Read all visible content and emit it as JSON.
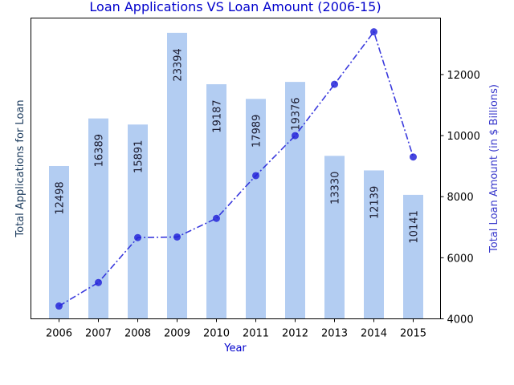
{
  "colors": {
    "bar": "#b3cdf2",
    "line": "#2626d9",
    "title": "#0000cc",
    "xlabel": "#0000cc",
    "ylabel_left": "#1a3a5c",
    "ylabel_right": "#3a3acc"
  },
  "chart_data": {
    "type": "bar",
    "title": "Loan Applications VS Loan Amount (2006-15)",
    "xlabel": "Year",
    "ylabel": "Total Applications for Loan",
    "y2label": "Total Loan Amount (in $ Billions)",
    "categories": [
      "2006",
      "2007",
      "2008",
      "2009",
      "2010",
      "2011",
      "2012",
      "2013",
      "2014",
      "2015"
    ],
    "series": [
      {
        "type": "bar",
        "axis": "left",
        "values": [
          12498,
          16389,
          15891,
          23394,
          19187,
          17989,
          19376,
          13330,
          12139,
          10141
        ],
        "labels": [
          "12498",
          "16389",
          "15891",
          "23394",
          "19187",
          "17989",
          "19376",
          "13330",
          "12139",
          "10141"
        ]
      },
      {
        "type": "line",
        "axis": "right",
        "style": "dash-dot",
        "marker": "circle",
        "values": [
          4420,
          5190,
          6660,
          6680,
          7290,
          8690,
          10000,
          11680,
          13400,
          9300
        ]
      }
    ],
    "ylim": [
      0,
      24600
    ],
    "y2lim": [
      4000,
      13850
    ],
    "y2ticks": [
      "4000",
      "6000",
      "8000",
      "10000",
      "12000"
    ],
    "y2tick_values": [
      4000,
      6000,
      8000,
      10000,
      12000
    ],
    "left_ticks_shown": false,
    "grid": false
  }
}
